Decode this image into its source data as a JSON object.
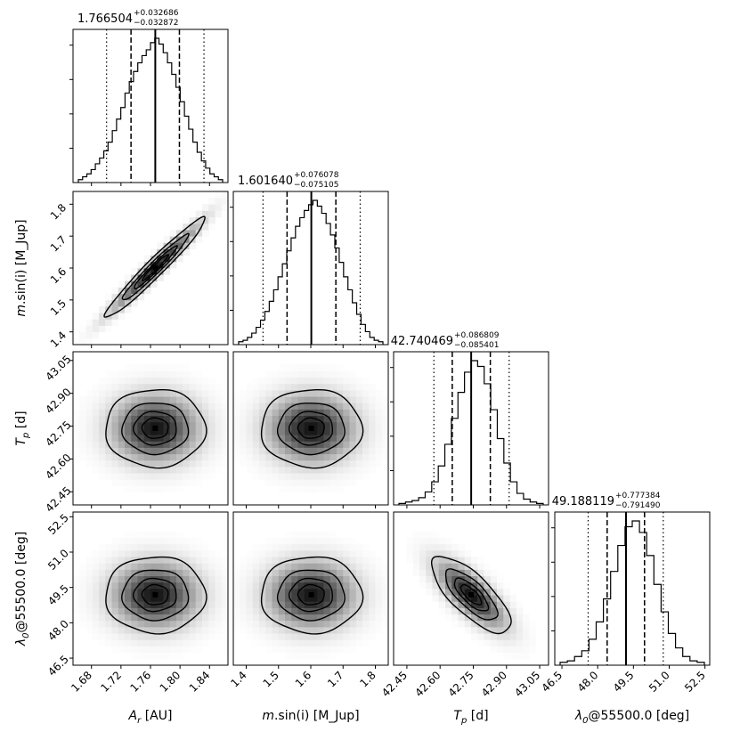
{
  "chart_data": {
    "type": "corner",
    "parameters": [
      {
        "key": "ar",
        "label_main": "A",
        "label_sub": "r",
        "label_unit": " [AU]",
        "range": [
          1.655,
          1.865
        ],
        "ticks": [
          1.68,
          1.72,
          1.76,
          1.8,
          1.84
        ],
        "tick_labels": [
          "1.68",
          "1.72",
          "1.76",
          "1.80",
          "1.84"
        ],
        "median": 1.766504,
        "plus": 0.032686,
        "minus": 0.032872,
        "title_value": "1.766504",
        "title_plus": "+0.032686",
        "title_minus": "−0.032872",
        "q_inner": [
          1.7336,
          1.7992
        ],
        "q_outer": [
          1.7005,
          1.8325
        ],
        "hist": [
          0.02,
          0.04,
          0.06,
          0.09,
          0.13,
          0.17,
          0.22,
          0.28,
          0.36,
          0.44,
          0.52,
          0.62,
          0.7,
          0.77,
          0.83,
          0.88,
          0.92,
          0.97,
          1.0,
          0.96,
          0.9,
          0.83,
          0.75,
          0.66,
          0.56,
          0.46,
          0.37,
          0.28,
          0.21,
          0.15,
          0.1,
          0.06,
          0.04,
          0.02
        ]
      },
      {
        "key": "msini",
        "label_main": "m",
        "label_sub": "",
        "label_unit": ".sin(i) [M_Jup]",
        "range": [
          1.36,
          1.84
        ],
        "ticks": [
          1.4,
          1.5,
          1.6,
          1.7,
          1.8
        ],
        "tick_labels": [
          "1.4",
          "1.5",
          "1.6",
          "1.7",
          "1.8"
        ],
        "median": 1.60164,
        "plus": 0.076078,
        "minus": 0.075105,
        "title_value": "1.601640",
        "title_plus": "+0.076078",
        "title_minus": "−0.075105",
        "q_inner": [
          1.5265,
          1.6777
        ],
        "q_outer": [
          1.452,
          1.753
        ],
        "hist": [
          0.02,
          0.03,
          0.05,
          0.08,
          0.12,
          0.17,
          0.23,
          0.3,
          0.38,
          0.47,
          0.56,
          0.65,
          0.74,
          0.82,
          0.88,
          0.93,
          0.97,
          1.0,
          0.96,
          0.91,
          0.84,
          0.76,
          0.67,
          0.57,
          0.47,
          0.38,
          0.29,
          0.21,
          0.14,
          0.09,
          0.05,
          0.03,
          0.02
        ]
      },
      {
        "key": "tp",
        "label_main": "T",
        "label_sub": "p",
        "label_unit": " [d]",
        "range": [
          42.39,
          43.09
        ],
        "ticks": [
          42.45,
          42.6,
          42.75,
          42.9,
          43.05
        ],
        "tick_labels": [
          "42.45",
          "42.60",
          "42.75",
          "42.90",
          "43.05"
        ],
        "median": 42.740469,
        "plus": 0.086809,
        "minus": 0.085401,
        "title_value": "42.740469",
        "title_plus": "+0.086809",
        "title_minus": "−0.085401",
        "q_inner": [
          42.655,
          42.827
        ],
        "q_outer": [
          42.572,
          42.912
        ],
        "hist": [
          0.01,
          0.02,
          0.03,
          0.05,
          0.09,
          0.16,
          0.27,
          0.42,
          0.6,
          0.78,
          0.92,
          1.0,
          0.96,
          0.84,
          0.66,
          0.46,
          0.29,
          0.16,
          0.08,
          0.04,
          0.02,
          0.01
        ]
      },
      {
        "key": "lambda0",
        "label_main": "λ",
        "label_sub": "0",
        "label_unit": "@55500.0 [deg]",
        "range": [
          46.2,
          52.7
        ],
        "ticks": [
          46.5,
          48.0,
          49.5,
          51.0,
          52.5
        ],
        "tick_labels": [
          "46.5",
          "48.0",
          "49.5",
          "51.0",
          "52.5"
        ],
        "median": 49.188119,
        "plus": 0.777384,
        "minus": 0.79149,
        "title_value": "49.188119",
        "title_plus": "+0.777384",
        "title_minus": "−0.791490",
        "q_inner": [
          48.397,
          49.965
        ],
        "q_outer": [
          47.6,
          50.75
        ],
        "hist": [
          0.02,
          0.03,
          0.06,
          0.1,
          0.18,
          0.3,
          0.46,
          0.65,
          0.83,
          0.96,
          1.0,
          0.92,
          0.76,
          0.56,
          0.37,
          0.22,
          0.12,
          0.06,
          0.03,
          0.02
        ]
      }
    ],
    "correlations": [
      [
        1.0,
        0.97,
        0.0,
        0.0
      ],
      [
        0.97,
        1.0,
        0.0,
        0.0
      ],
      [
        0.0,
        0.0,
        1.0,
        -0.75
      ],
      [
        0.0,
        0.0,
        -0.75,
        1.0
      ]
    ],
    "contour_levels_sigma": [
      0.5,
      1.0,
      1.5,
      2.0
    ],
    "xlabels": [
      "A_r [AU]",
      "m.sin(i) [M_Jup]",
      "T_p [d]",
      "λ0@55500.0 [deg]"
    ],
    "ylabels": [
      "",
      "m.sin(i) [M_Jup]",
      "T_p [d]",
      "λ0@55500.0 [deg]"
    ]
  }
}
